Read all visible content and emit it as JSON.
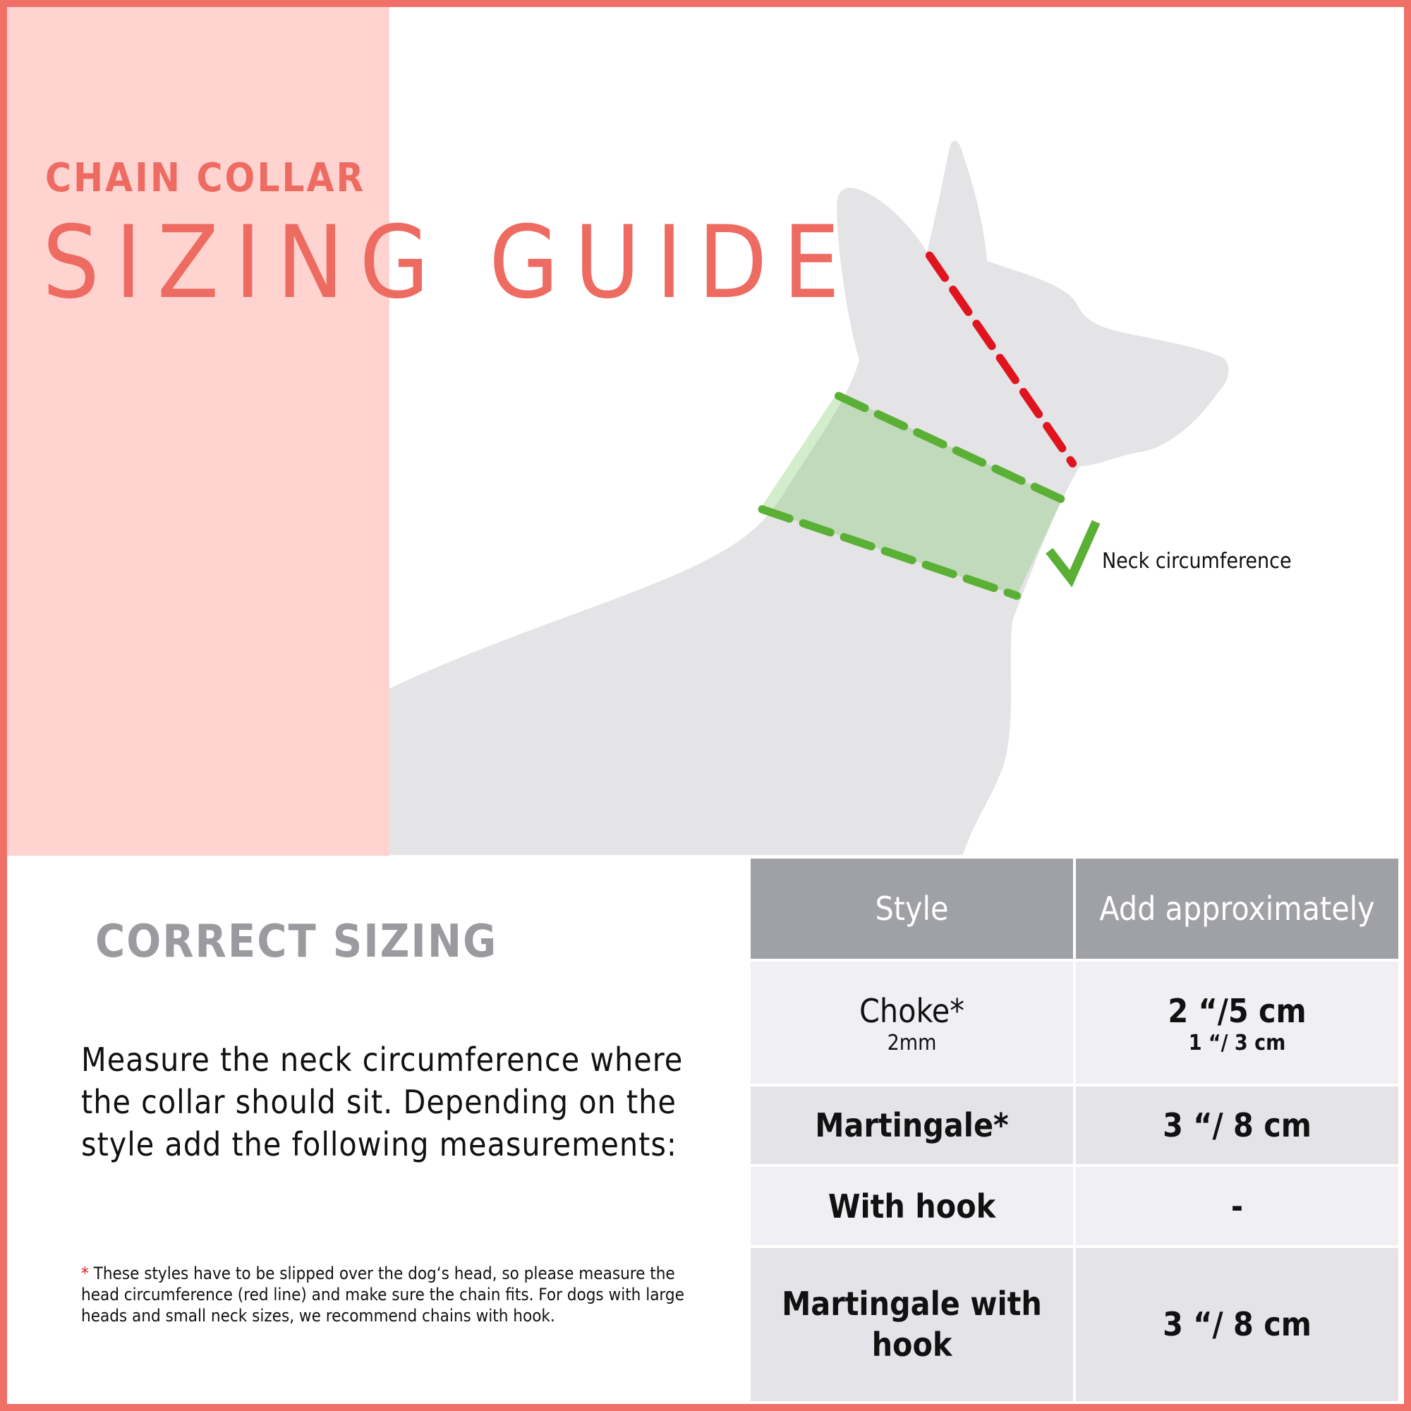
{
  "header": {
    "kicker": "CHAIN COLLAR",
    "title": "SIZING GUIDE"
  },
  "illustration": {
    "neck_label": "Neck circumference",
    "colors": {
      "head_line": "#e0141e",
      "neck_band": "#5ab034",
      "dog": "#e4e3e6",
      "accent": "#ee6b62"
    }
  },
  "sizing": {
    "heading": "CORRECT SIZING",
    "instructions": "Measure the neck circumference where the collar should sit. Depending on the style add the following measurements:",
    "footnote_marker": "*",
    "footnote": " These styles have to be slipped over the dog‘s head, so please measure the head circumference (red line) and make sure the chain fits. For dogs with large heads and small neck sizes, we recommend chains with hook."
  },
  "table": {
    "headers": [
      "Style",
      "Add approximately"
    ],
    "rows": [
      {
        "style": "Choke*",
        "style_sub": "2mm",
        "add": "2 “/5 cm",
        "add_sub": "1 “/ 3 cm"
      },
      {
        "style": "Martingale*",
        "add": "3 “/ 8 cm"
      },
      {
        "style": "With hook",
        "add": "-"
      },
      {
        "style": "Martingale with hook",
        "add": "3 “/ 8 cm"
      }
    ]
  }
}
